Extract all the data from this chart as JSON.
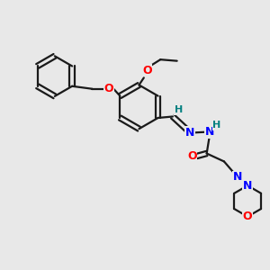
{
  "background_color": "#e8e8e8",
  "bond_color": "#1a1a1a",
  "atom_colors": {
    "O": "#ff0000",
    "N": "#0000ff",
    "H": "#008080",
    "C": "#1a1a1a"
  },
  "figsize": [
    3.0,
    3.0
  ],
  "dpi": 100
}
